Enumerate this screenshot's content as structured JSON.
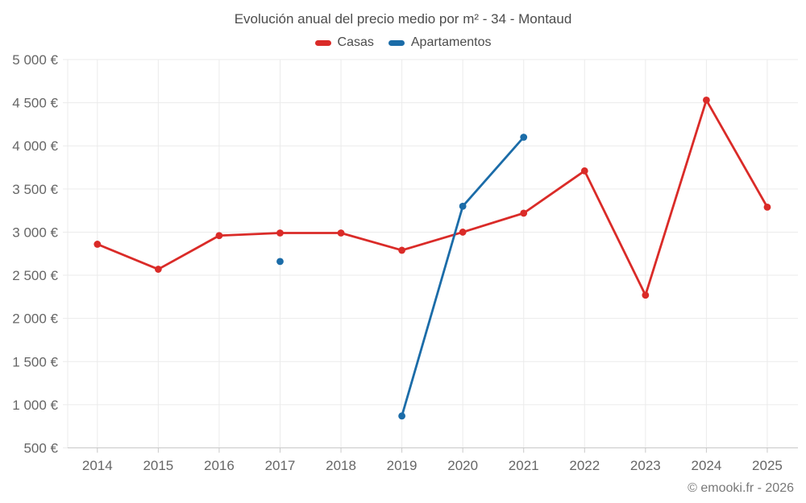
{
  "title": "Evolución anual del precio medio por m² - 34 - Montaud",
  "footer": "© emooki.fr - 2026",
  "legend": [
    {
      "label": "Casas",
      "color": "#da2b28"
    },
    {
      "label": "Apartamentos",
      "color": "#1b6ca8"
    }
  ],
  "colors": {
    "casas": "#da2b28",
    "apartamentos": "#1b6ca8",
    "grid_line": "#ebebeb",
    "axis_line": "#c8c8c8",
    "tick_label": "#666666",
    "title_text": "#4c4c4c",
    "footer_text": "#787878"
  },
  "chart_data": {
    "type": "line",
    "title": "Evolución anual del precio medio por m² - 34 - Montaud",
    "xlabel": "",
    "ylabel": "",
    "categories": [
      "2014",
      "2015",
      "2016",
      "2017",
      "2018",
      "2019",
      "2020",
      "2021",
      "2022",
      "2023",
      "2024",
      "2025"
    ],
    "series": [
      {
        "name": "Casas",
        "color": "#da2b28",
        "values": [
          2860,
          2570,
          2960,
          2990,
          2990,
          2790,
          3000,
          3220,
          3710,
          2270,
          4530,
          3290
        ]
      },
      {
        "name": "Apartamentos",
        "color": "#1b6ca8",
        "values": [
          null,
          null,
          null,
          2660,
          null,
          870,
          3300,
          4100,
          null,
          null,
          null,
          null
        ]
      }
    ],
    "ylim": [
      500,
      5000
    ],
    "ytick_step": 500,
    "ytick_format": "{value} €",
    "grid": true,
    "legend_position": "top"
  }
}
